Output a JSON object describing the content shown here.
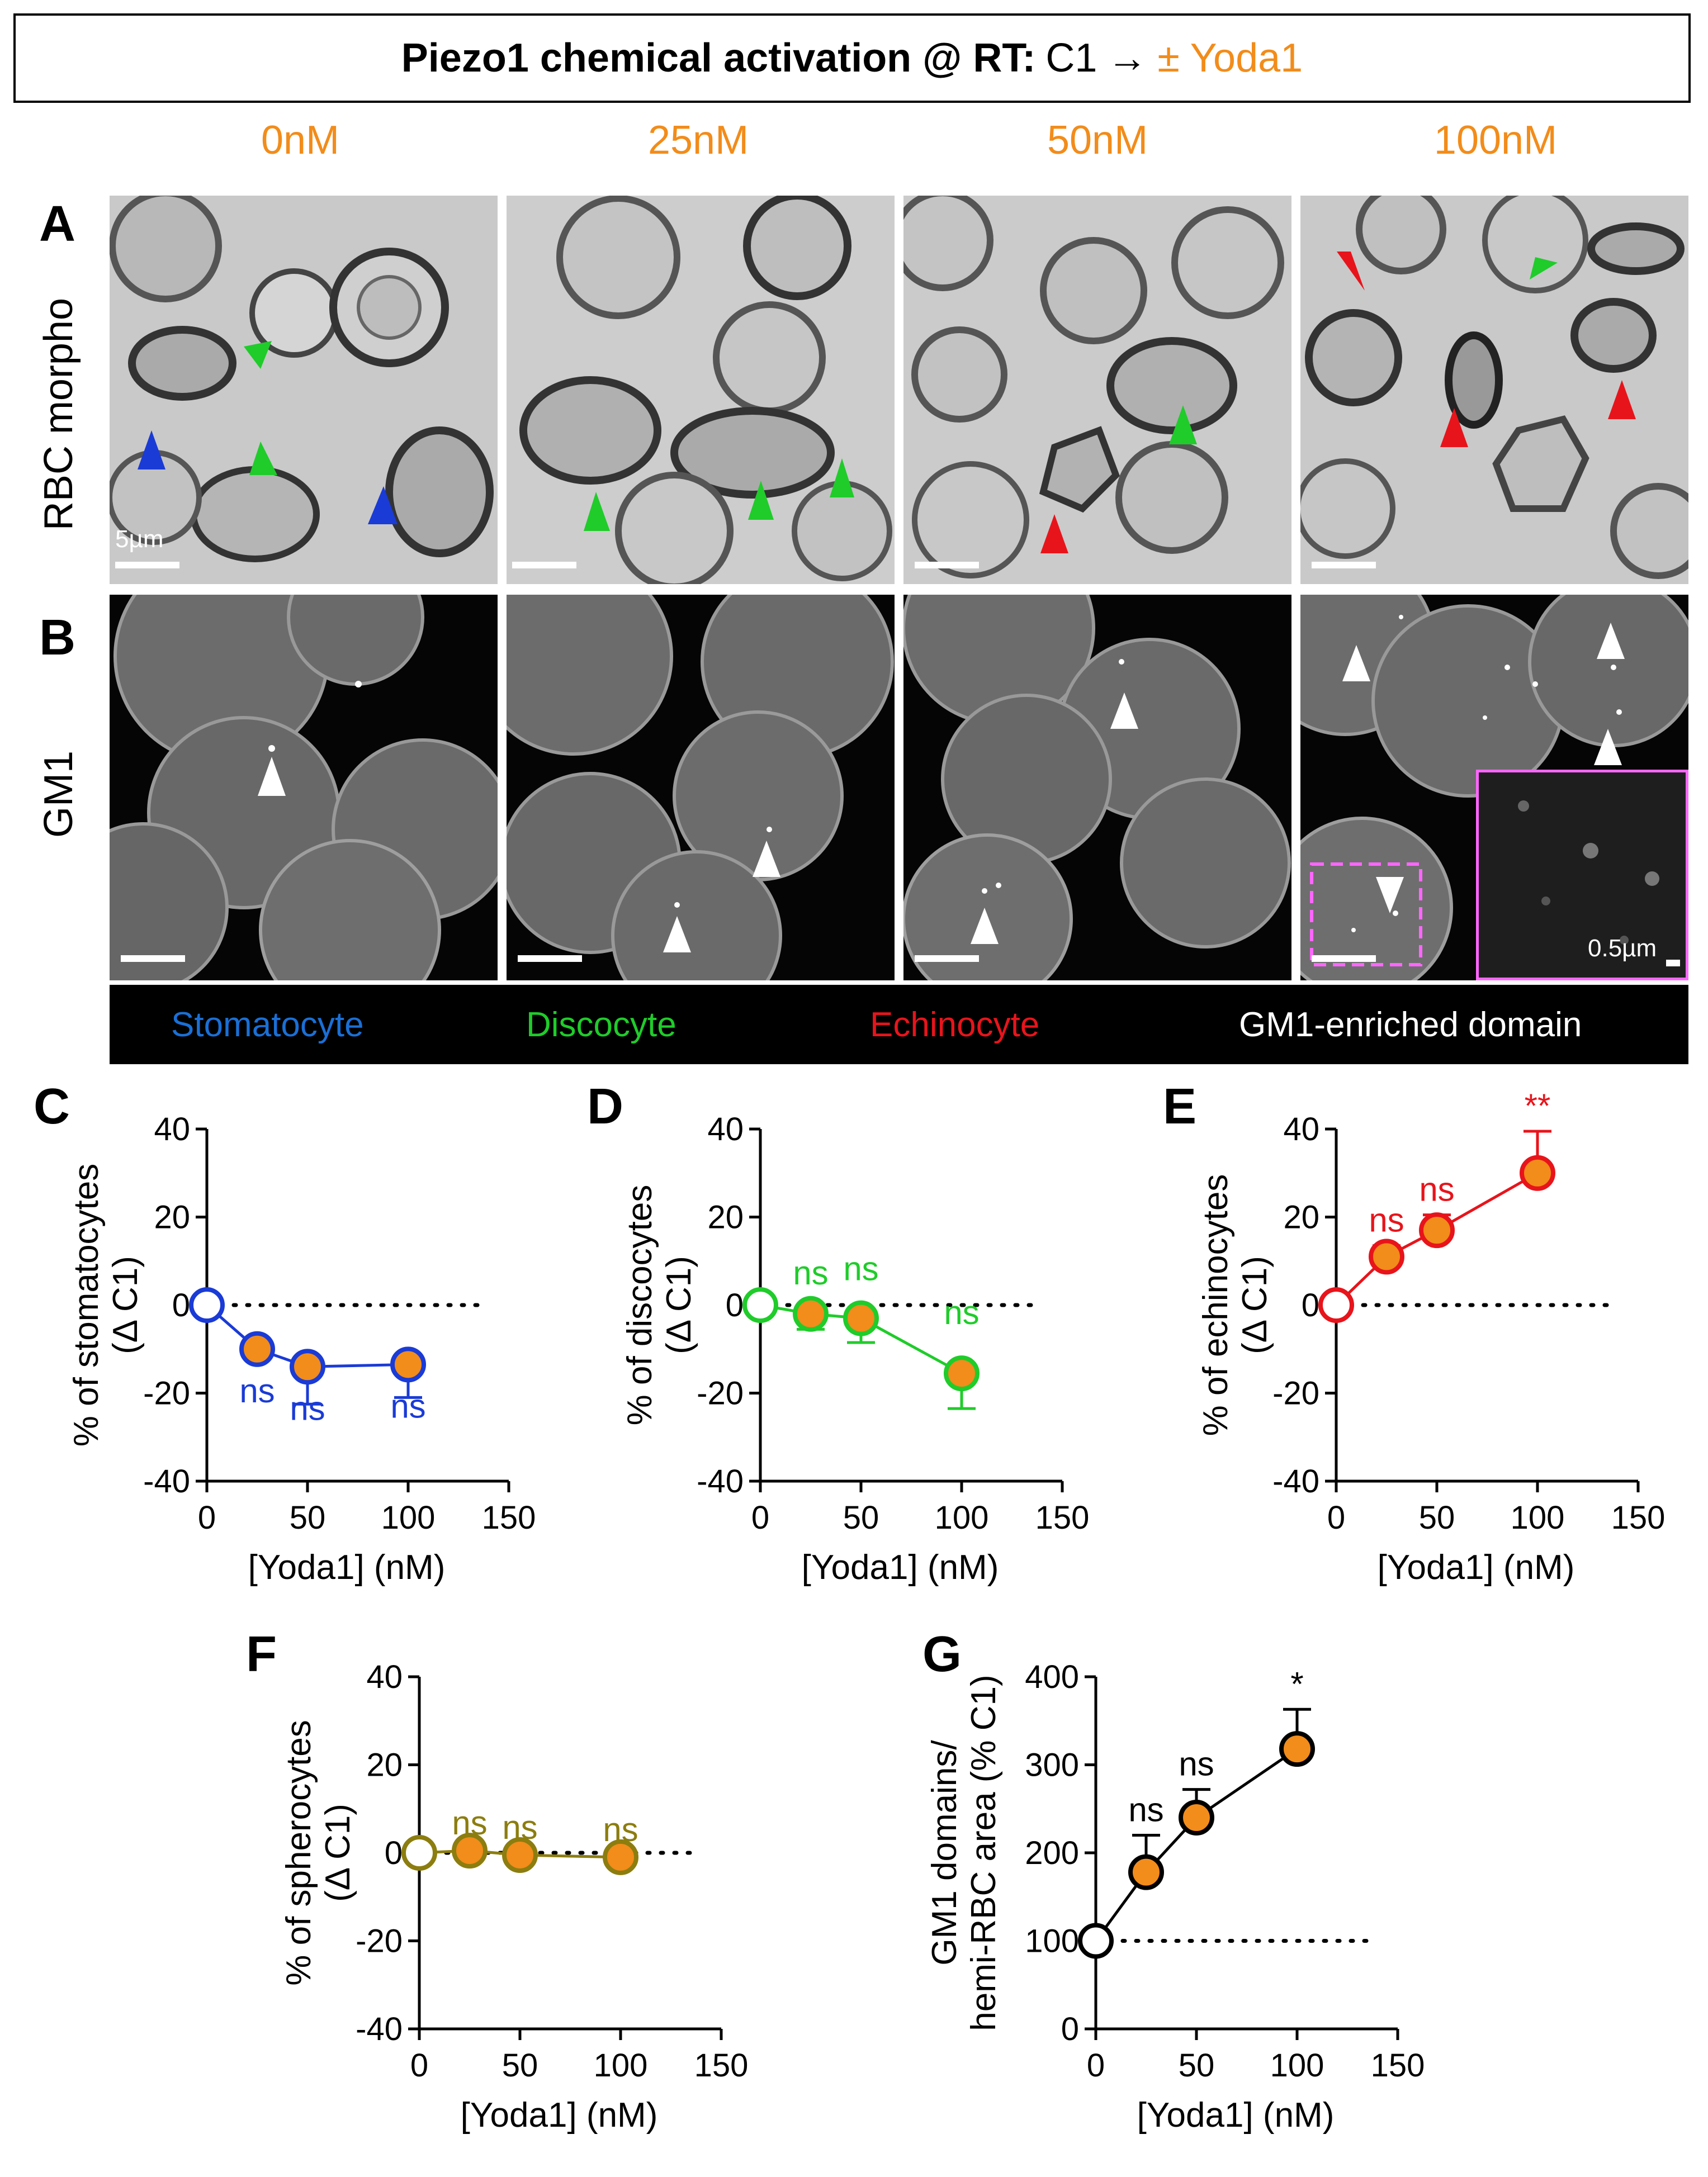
{
  "header": {
    "title_bold": "Piezo1 chemical activation @ RT:",
    "title_plain": "C1",
    "title_arrow": "→",
    "title_yoda": "± Yoda1"
  },
  "concentrations": [
    "0nM",
    "25nM",
    "50nM",
    "100nM"
  ],
  "panels": {
    "A": "A",
    "B": "B",
    "row_A_label": "RBC morpho",
    "row_B_label": "GM1",
    "scale_label_A": "5µm",
    "scale_label_inset": "0.5µm"
  },
  "legend": {
    "stomatocyte": "Stomatocyte",
    "discocyte": "Discocyte",
    "echinocyte": "Echinocyte",
    "gm1": "GM1-enriched domain"
  },
  "colors": {
    "orange": "#f28c1a",
    "stomatocyte": "#1a3bd6",
    "discocyte": "#1fcc2a",
    "echinocyte": "#e8141b",
    "spherocyte": "#8c7d0f",
    "gm1": "#000000"
  },
  "chart_data": [
    {
      "panel": "C",
      "type": "line",
      "ylabel": "% of stomatocytes",
      "ylabel2": "(Δ C1)",
      "xlabel": "[Yoda1] (nM)",
      "xlim": [
        0,
        150
      ],
      "ylim": [
        -40,
        40
      ],
      "xticks": [
        0,
        50,
        100,
        150
      ],
      "yticks": [
        -40,
        -20,
        0,
        20,
        40
      ],
      "baseline": 0,
      "x": [
        0,
        25,
        50,
        100
      ],
      "y": [
        0,
        -10,
        -14,
        -13.5
      ],
      "err": [
        0,
        0,
        8.5,
        7.5
      ],
      "labels": [
        "",
        "ns",
        "ns",
        "ns"
      ],
      "color_key": "stomatocyte",
      "label_position": "below"
    },
    {
      "panel": "D",
      "type": "line",
      "ylabel": "% of discocytes",
      "ylabel2": "(Δ C1)",
      "xlabel": "[Yoda1] (nM)",
      "xlim": [
        0,
        150
      ],
      "ylim": [
        -40,
        40
      ],
      "xticks": [
        0,
        50,
        100,
        150
      ],
      "yticks": [
        -40,
        -20,
        0,
        20,
        40
      ],
      "baseline": 0,
      "x": [
        0,
        25,
        50,
        100
      ],
      "y": [
        0,
        -2,
        -3,
        -15.5
      ],
      "err": [
        0,
        3.5,
        5.5,
        8
      ],
      "labels": [
        "",
        "ns",
        "ns",
        "ns"
      ],
      "color_key": "discocyte",
      "label_position": "above"
    },
    {
      "panel": "E",
      "type": "line",
      "ylabel": "% of echinocytes",
      "ylabel2": "(Δ C1)",
      "xlabel": "[Yoda1] (nM)",
      "xlim": [
        0,
        150
      ],
      "ylim": [
        -40,
        40
      ],
      "xticks": [
        0,
        50,
        100,
        150
      ],
      "yticks": [
        -40,
        -20,
        0,
        20,
        40
      ],
      "baseline": 0,
      "x": [
        0,
        25,
        50,
        100
      ],
      "y": [
        0,
        11,
        17,
        30
      ],
      "err": [
        0,
        2.5,
        3.5,
        9.5
      ],
      "labels": [
        "",
        "ns",
        "ns",
        "**"
      ],
      "color_key": "echinocyte",
      "label_position": "above"
    },
    {
      "panel": "F",
      "type": "line",
      "ylabel": "% of spherocytes",
      "ylabel2": "(Δ C1)",
      "xlabel": "[Yoda1] (nM)",
      "xlim": [
        0,
        150
      ],
      "ylim": [
        -40,
        40
      ],
      "xticks": [
        0,
        50,
        100,
        150
      ],
      "yticks": [
        -40,
        -20,
        0,
        20,
        40
      ],
      "baseline": 0,
      "x": [
        0,
        25,
        50,
        100
      ],
      "y": [
        0,
        0.5,
        -0.5,
        -1
      ],
      "err": [
        0,
        0.5,
        0.5,
        0.5
      ],
      "labels": [
        "",
        "ns",
        "ns",
        "ns"
      ],
      "color_key": "spherocyte",
      "label_position": "above"
    },
    {
      "panel": "G",
      "type": "line",
      "ylabel": "GM1 domains/",
      "ylabel2": "hemi-RBC area (% C1)",
      "xlabel": "[Yoda1] (nM)",
      "xlim": [
        0,
        150
      ],
      "ylim": [
        0,
        400
      ],
      "xticks": [
        0,
        50,
        100,
        150
      ],
      "yticks": [
        0,
        100,
        200,
        300,
        400
      ],
      "baseline": 100,
      "x": [
        0,
        25,
        50,
        100
      ],
      "y": [
        100,
        178,
        240,
        318
      ],
      "err": [
        0,
        42,
        32,
        45
      ],
      "labels": [
        "",
        "ns",
        "ns",
        "*"
      ],
      "color_key": "gm1",
      "label_position": "above"
    }
  ]
}
